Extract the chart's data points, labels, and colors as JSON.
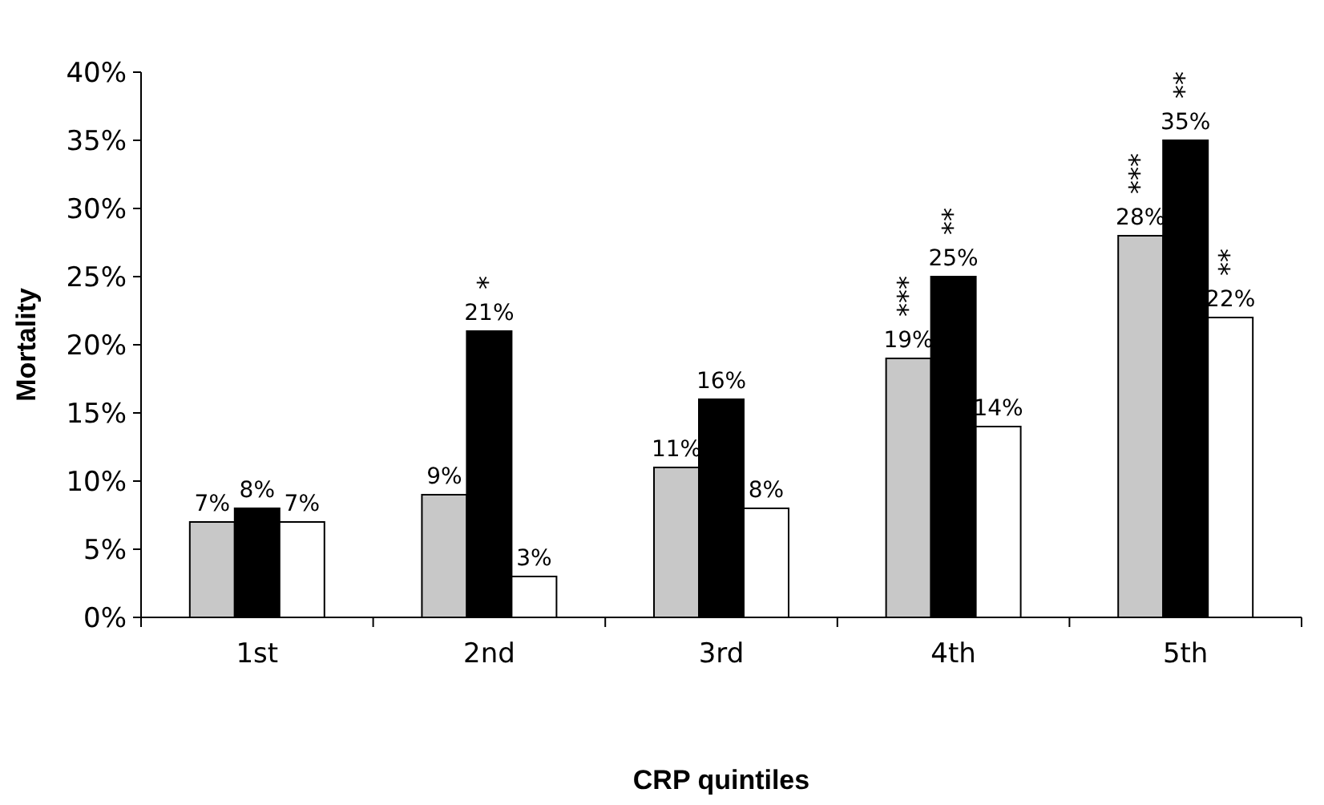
{
  "chart_data": {
    "type": "bar",
    "xlabel": "CRP quintiles",
    "ylabel": "Mortality",
    "categories": [
      "1st",
      "2nd",
      "3rd",
      "4th",
      "5th"
    ],
    "series": [
      {
        "color": "#c8c8c8",
        "values": [
          7,
          9,
          11,
          19,
          28
        ],
        "value_labels": [
          "7%",
          "9%",
          "11%",
          "19%",
          "28%"
        ]
      },
      {
        "color": "#000000",
        "values": [
          8,
          21,
          16,
          25,
          35
        ],
        "value_labels": [
          "8%",
          "21%",
          "16%",
          "25%",
          "35%"
        ]
      },
      {
        "color": "#ffffff",
        "values": [
          7,
          3,
          8,
          14,
          22
        ],
        "value_labels": [
          "7%",
          "3%",
          "8%",
          "14%",
          "22%"
        ]
      }
    ],
    "ylim": [
      0,
      40
    ],
    "yticks": [
      {
        "value": 0,
        "label": "0%"
      },
      {
        "value": 5,
        "label": "5%"
      },
      {
        "value": 10,
        "label": "10%"
      },
      {
        "value": 15,
        "label": "15%"
      },
      {
        "value": 20,
        "label": "20%"
      },
      {
        "value": 25,
        "label": "25%"
      },
      {
        "value": 30,
        "label": "30%"
      },
      {
        "value": 35,
        "label": "35%"
      },
      {
        "value": 40,
        "label": "40%"
      }
    ],
    "annotations": [
      "*",
      "***",
      "**",
      "***",
      "**",
      "**"
    ],
    "grid": false
  }
}
